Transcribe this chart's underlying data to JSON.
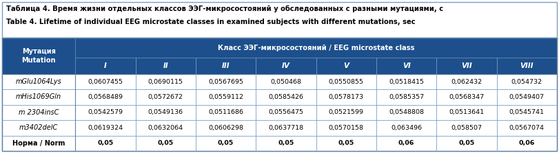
{
  "title_line1": "Таблица 4. Время жизни отдельных классов ЭЭГ-микросостояний у обследованных с разными мутациями, с",
  "title_line2": "Table 4. Lifetime of individual EEG microstate classes in examined subjects with different mutations, sec",
  "header_col_line1": "Мутация",
  "header_col_line2": "Mutation",
  "header_main": "Класс ЭЭГ-микросостояний / EEG microstate class",
  "subheaders": [
    "I",
    "II",
    "III",
    "IV",
    "V",
    "VI",
    "VII",
    "VIII"
  ],
  "rows": [
    {
      "label": "mGlu1064Lys",
      "italic": true,
      "bold": false,
      "values": [
        "0,0607455",
        "0,0690115",
        "0,0567695",
        "0,050468",
        "0,0550855",
        "0,0518415",
        "0,062432",
        "0,054732"
      ]
    },
    {
      "label": "mHis1069Gln",
      "italic": true,
      "bold": false,
      "values": [
        "0,0568489",
        "0,0572672",
        "0,0559112",
        "0,0585426",
        "0,0578173",
        "0,0585357",
        "0,0568347",
        "0,0549407"
      ]
    },
    {
      "label": "m 2304insC",
      "italic": true,
      "bold": false,
      "values": [
        "0,0542579",
        "0,0549136",
        "0,0511686",
        "0,0556475",
        "0,0521599",
        "0,0548808",
        "0,0513641",
        "0,0545741"
      ]
    },
    {
      "label": "m3402delC",
      "italic": true,
      "bold": false,
      "values": [
        "0,0619324",
        "0,0632064",
        "0,0606298",
        "0,0637718",
        "0,0570158",
        "0,063496",
        "0,058507",
        "0,0567074"
      ]
    },
    {
      "label": "Норма / Norm",
      "italic": false,
      "bold": true,
      "values": [
        "0,05",
        "0,05",
        "0,05",
        "0,05",
        "0,05",
        "0,06",
        "0,05",
        "0,06"
      ]
    }
  ],
  "header_bg": "#1C4F8C",
  "header_fg": "#FFFFFF",
  "cell_bg": "#FFFFFF",
  "border_color": "#1C4F8C",
  "title_color": "#000000",
  "cell_color": "#000000",
  "outer_border": "#5B7FA6",
  "fig_w": 8.11,
  "fig_h": 2.23,
  "dpi": 100
}
